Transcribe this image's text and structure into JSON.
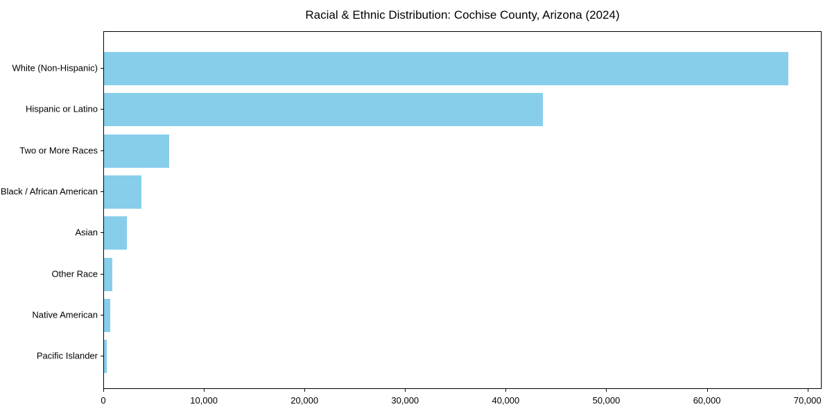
{
  "chart_data": {
    "type": "bar",
    "orientation": "horizontal",
    "title": "Racial & Ethnic Distribution: Cochise County, Arizona (2024)",
    "categories": [
      "White (Non-Hispanic)",
      "Hispanic or Latino",
      "Two or More Races",
      "Black / African American",
      "Asian",
      "Other Race",
      "Native American",
      "Pacific Islander"
    ],
    "values": [
      68000,
      43600,
      6500,
      3700,
      2300,
      800,
      650,
      250
    ],
    "xlabel": "",
    "ylabel": "",
    "xlim": [
      0,
      71400
    ],
    "x_ticks": [
      0,
      10000,
      20000,
      30000,
      40000,
      50000,
      60000,
      70000
    ],
    "x_tick_labels": [
      "0",
      "10,000",
      "20,000",
      "30,000",
      "40,000",
      "50,000",
      "60,000",
      "70,000"
    ],
    "bar_color": "#87CEEB",
    "grid": false,
    "legend": "none",
    "frame": true
  }
}
